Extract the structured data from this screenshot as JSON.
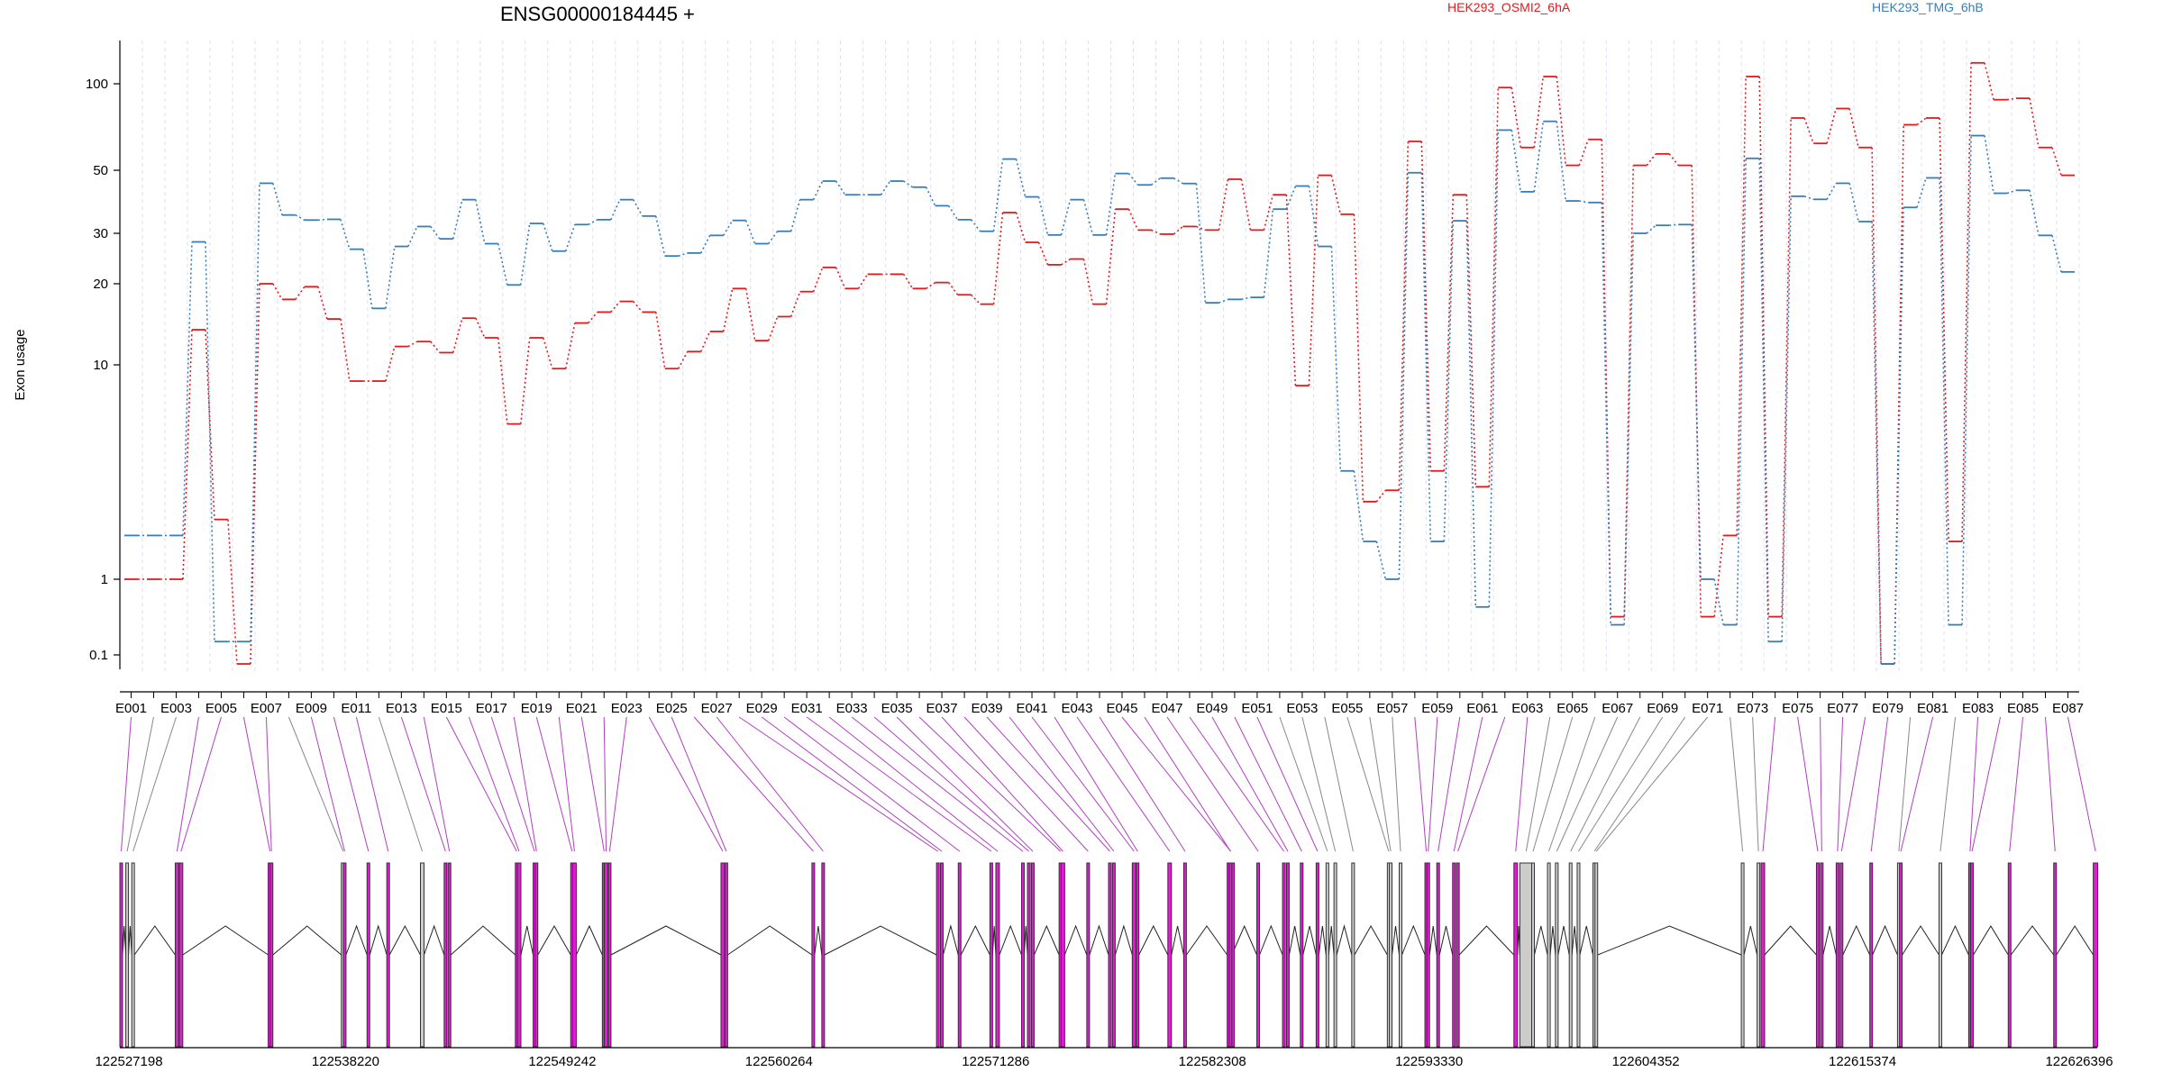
{
  "chart_data": {
    "type": "line",
    "title": "ENSG00000184445 +",
    "ylabel": "Exon usage",
    "xlabel": "",
    "y_scale": "log",
    "y_ticks": [
      0.1,
      1,
      10,
      20,
      30,
      50,
      100
    ],
    "y_tick_labels": [
      "0.1",
      "1",
      "10",
      "20",
      "30",
      "50",
      "100"
    ],
    "ylim": [
      0.07,
      140
    ],
    "grid": "vertical dashed lines at each exon",
    "legend_position": "top",
    "colors": {
      "series_1": "#e41a1c",
      "series_2": "#377eb8",
      "exon_highlight": "#e41ad6",
      "exon_plain": "#cccccc",
      "connector_highlight": "#b03fc0",
      "connector_plain": "#888888",
      "grid": "#ddddf2"
    },
    "exons": [
      "E001",
      "E002",
      "E003",
      "E004",
      "E005",
      "E006",
      "E007",
      "E008",
      "E009",
      "E010",
      "E011",
      "E012",
      "E013",
      "E014",
      "E015",
      "E016",
      "E017",
      "E018",
      "E019",
      "E020",
      "E021",
      "E022",
      "E023",
      "E024",
      "E025",
      "E026",
      "E027",
      "E028",
      "E029",
      "E030",
      "E031",
      "E032",
      "E033",
      "E034",
      "E035",
      "E036",
      "E037",
      "E038",
      "E039",
      "E040",
      "E041",
      "E042",
      "E043",
      "E044",
      "E045",
      "E046",
      "E047",
      "E048",
      "E049",
      "E050",
      "E051",
      "E052",
      "E053",
      "E054",
      "E055",
      "E056",
      "E057",
      "E058",
      "E059",
      "E060",
      "E061",
      "E062",
      "E063",
      "E064",
      "E065",
      "E066",
      "E067",
      "E068",
      "E069",
      "E070",
      "E071",
      "E072",
      "E073",
      "E074",
      "E075",
      "E076",
      "E077",
      "E078",
      "E079",
      "E080",
      "E081",
      "E082",
      "E083",
      "E084",
      "E085",
      "E086",
      "E087"
    ],
    "exon_axis_labels": [
      "E001",
      "E003",
      "E005",
      "E007",
      "E009",
      "E011",
      "E013",
      "E015",
      "E017",
      "E019",
      "E021",
      "E023",
      "E025",
      "E027",
      "E029",
      "E031",
      "E033",
      "E035",
      "E037",
      "E039",
      "E041",
      "E043",
      "E045",
      "E047",
      "E049",
      "E051",
      "E053",
      "E055",
      "E057",
      "E059",
      "E061",
      "E063",
      "E065",
      "E067",
      "E069",
      "E071",
      "E073",
      "E075",
      "E077",
      "E079",
      "E081",
      "E083",
      "E085",
      "E087"
    ],
    "series": [
      {
        "name": "HEK293_OSMI2_6hA",
        "color": "#e41a1c",
        "values": [
          1.0,
          1.0,
          1.0,
          13.5,
          1.9,
          0.08,
          20,
          17.5,
          19.5,
          14.8,
          8.4,
          8.4,
          11.7,
          12.2,
          11.1,
          14.9,
          12.6,
          5.3,
          12.6,
          9.6,
          14.3,
          15.7,
          17.2,
          15.7,
          9.6,
          11.2,
          13.3,
          19.2,
          12.3,
          15.1,
          18.7,
          22.8,
          19.2,
          21.6,
          21.6,
          19.2,
          20.2,
          18.2,
          16.8,
          35.5,
          27.9,
          23.3,
          24.4,
          16.8,
          36.5,
          30.8,
          29.8,
          31.7,
          30.8,
          46.5,
          30.8,
          41,
          8,
          48,
          35,
          2.3,
          2.6,
          63,
          3.2,
          41,
          2.7,
          97,
          60,
          108,
          52,
          64,
          0.32,
          52,
          57,
          52,
          0.32,
          1.6,
          108,
          0.32,
          76,
          62,
          82,
          60,
          0.08,
          72,
          76,
          1.5,
          125,
          88,
          89,
          60,
          48
        ]
      },
      {
        "name": "HEK293_TMG_6hB",
        "color": "#377eb8",
        "values": [
          1.6,
          1.6,
          1.6,
          28,
          0.15,
          0.15,
          45,
          34.8,
          33.4,
          33.6,
          26.4,
          16.2,
          27,
          31.7,
          28.7,
          39.4,
          27.6,
          19.8,
          32.5,
          26,
          32.2,
          33.5,
          39.4,
          34.5,
          25,
          25.6,
          29.5,
          33.3,
          27.6,
          30.5,
          39.4,
          45.8,
          41,
          41,
          45.8,
          43.6,
          37.5,
          33.5,
          30.5,
          54.7,
          40.3,
          29.6,
          39.4,
          29.6,
          48.7,
          44.4,
          46.9,
          44.9,
          17,
          17.5,
          17.8,
          36.5,
          44,
          27,
          3.2,
          1.5,
          1.0,
          49,
          1.5,
          33.2,
          0.43,
          69,
          42,
          74,
          39,
          38.5,
          0.25,
          30,
          32,
          32.2,
          1.0,
          0.25,
          55,
          0.15,
          40.5,
          39.5,
          45,
          33,
          0.08,
          37,
          47,
          0.25,
          66,
          41.5,
          42.5,
          29.5,
          22
        ]
      }
    ],
    "genomic_coordinates": [
      "122527198",
      "122538220",
      "122549242",
      "122560264",
      "122571286",
      "122582308",
      "122593330",
      "122604352",
      "122615374",
      "122626396"
    ]
  }
}
